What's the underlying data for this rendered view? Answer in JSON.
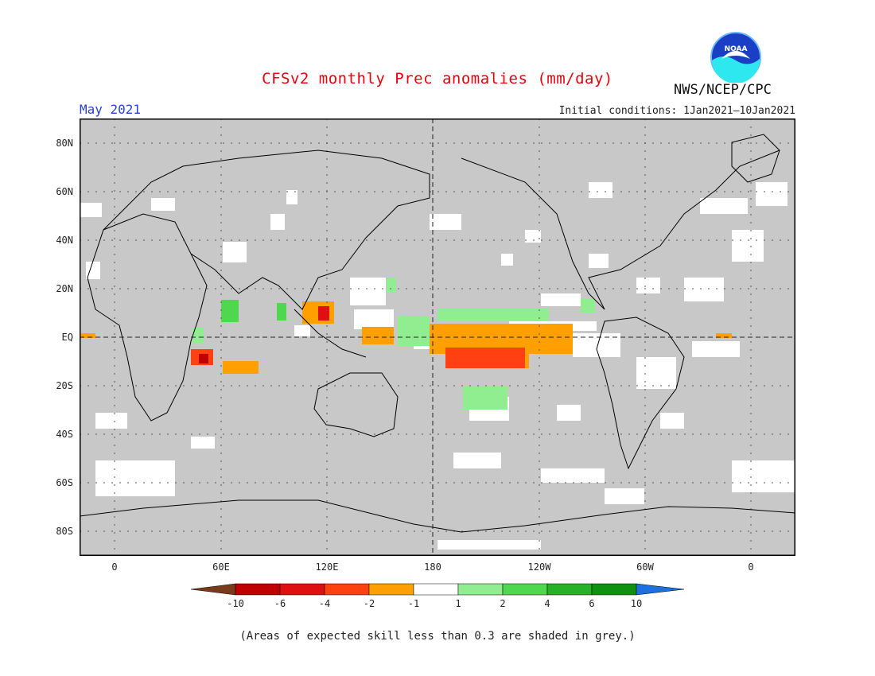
{
  "header": {
    "title": "CFSv2 monthly Prec anomalies (mm/day)",
    "period": "May 2021",
    "initial_conditions": "Initial conditions: 1Jan2021–10Jan2021",
    "agency": "NWS/NCEP/CPC",
    "logo_text": "NOAA"
  },
  "map": {
    "y_labels": [
      "80N",
      "60N",
      "40N",
      "20N",
      "EQ",
      "20S",
      "40S",
      "60S",
      "80S"
    ],
    "x_labels": [
      "0",
      "60E",
      "120E",
      "180",
      "120W",
      "60W",
      "0"
    ],
    "background_grey": "#c8c8c8"
  },
  "colorbar": {
    "labels": [
      "-10",
      "-6",
      "-4",
      "-2",
      "-1",
      "1",
      "2",
      "4",
      "6",
      "10"
    ],
    "colors": [
      "#7a3b1c",
      "#c00000",
      "#e01010",
      "#ff4010",
      "#ffa000",
      "#ffffff",
      "#90ee90",
      "#4fd84f",
      "#28b028",
      "#109010",
      "#1e6fe0"
    ]
  },
  "footer": {
    "note": "(Areas of expected skill less than 0.3 are shaded in grey.)"
  }
}
